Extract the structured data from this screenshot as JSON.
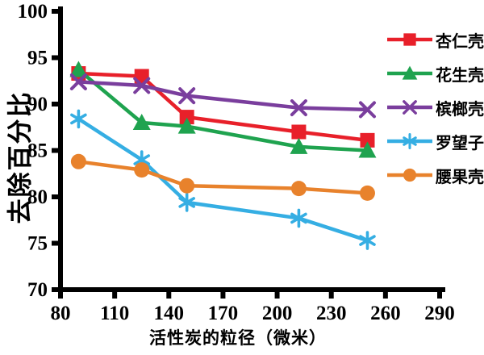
{
  "chart_data": {
    "type": "line",
    "title": "",
    "xlabel": "活性炭的粒径（微米）",
    "ylabel": "去除百分比",
    "x": [
      90,
      125,
      150,
      212,
      250
    ],
    "xlim": [
      80,
      290
    ],
    "ylim": [
      70,
      100
    ],
    "x_ticks": [
      80,
      110,
      140,
      170,
      200,
      230,
      260,
      290
    ],
    "y_ticks": [
      100,
      95,
      90,
      85,
      80,
      75,
      70
    ],
    "grid": false,
    "legend_position": "right",
    "axis_color": "#000000",
    "background": "#FFFFFF",
    "series": [
      {
        "name": "杏仁壳",
        "marker": "square",
        "color": "#E8202A",
        "values": [
          93.3,
          93.0,
          88.6,
          87.0,
          86.1
        ]
      },
      {
        "name": "花生壳",
        "marker": "triangle",
        "color": "#1FA34F",
        "values": [
          93.7,
          88.0,
          87.6,
          85.4,
          85.0
        ]
      },
      {
        "name": "槟榔壳",
        "marker": "x",
        "color": "#7A3E9D",
        "values": [
          92.4,
          92.0,
          90.9,
          89.6,
          89.4
        ]
      },
      {
        "name": "罗望子",
        "marker": "asterisk",
        "color": "#35AEE3",
        "values": [
          88.4,
          84.0,
          79.4,
          77.7,
          75.3
        ]
      },
      {
        "name": "腰果壳",
        "marker": "circle",
        "color": "#E8822C",
        "values": [
          83.8,
          82.9,
          81.2,
          80.9,
          80.4
        ]
      }
    ]
  }
}
